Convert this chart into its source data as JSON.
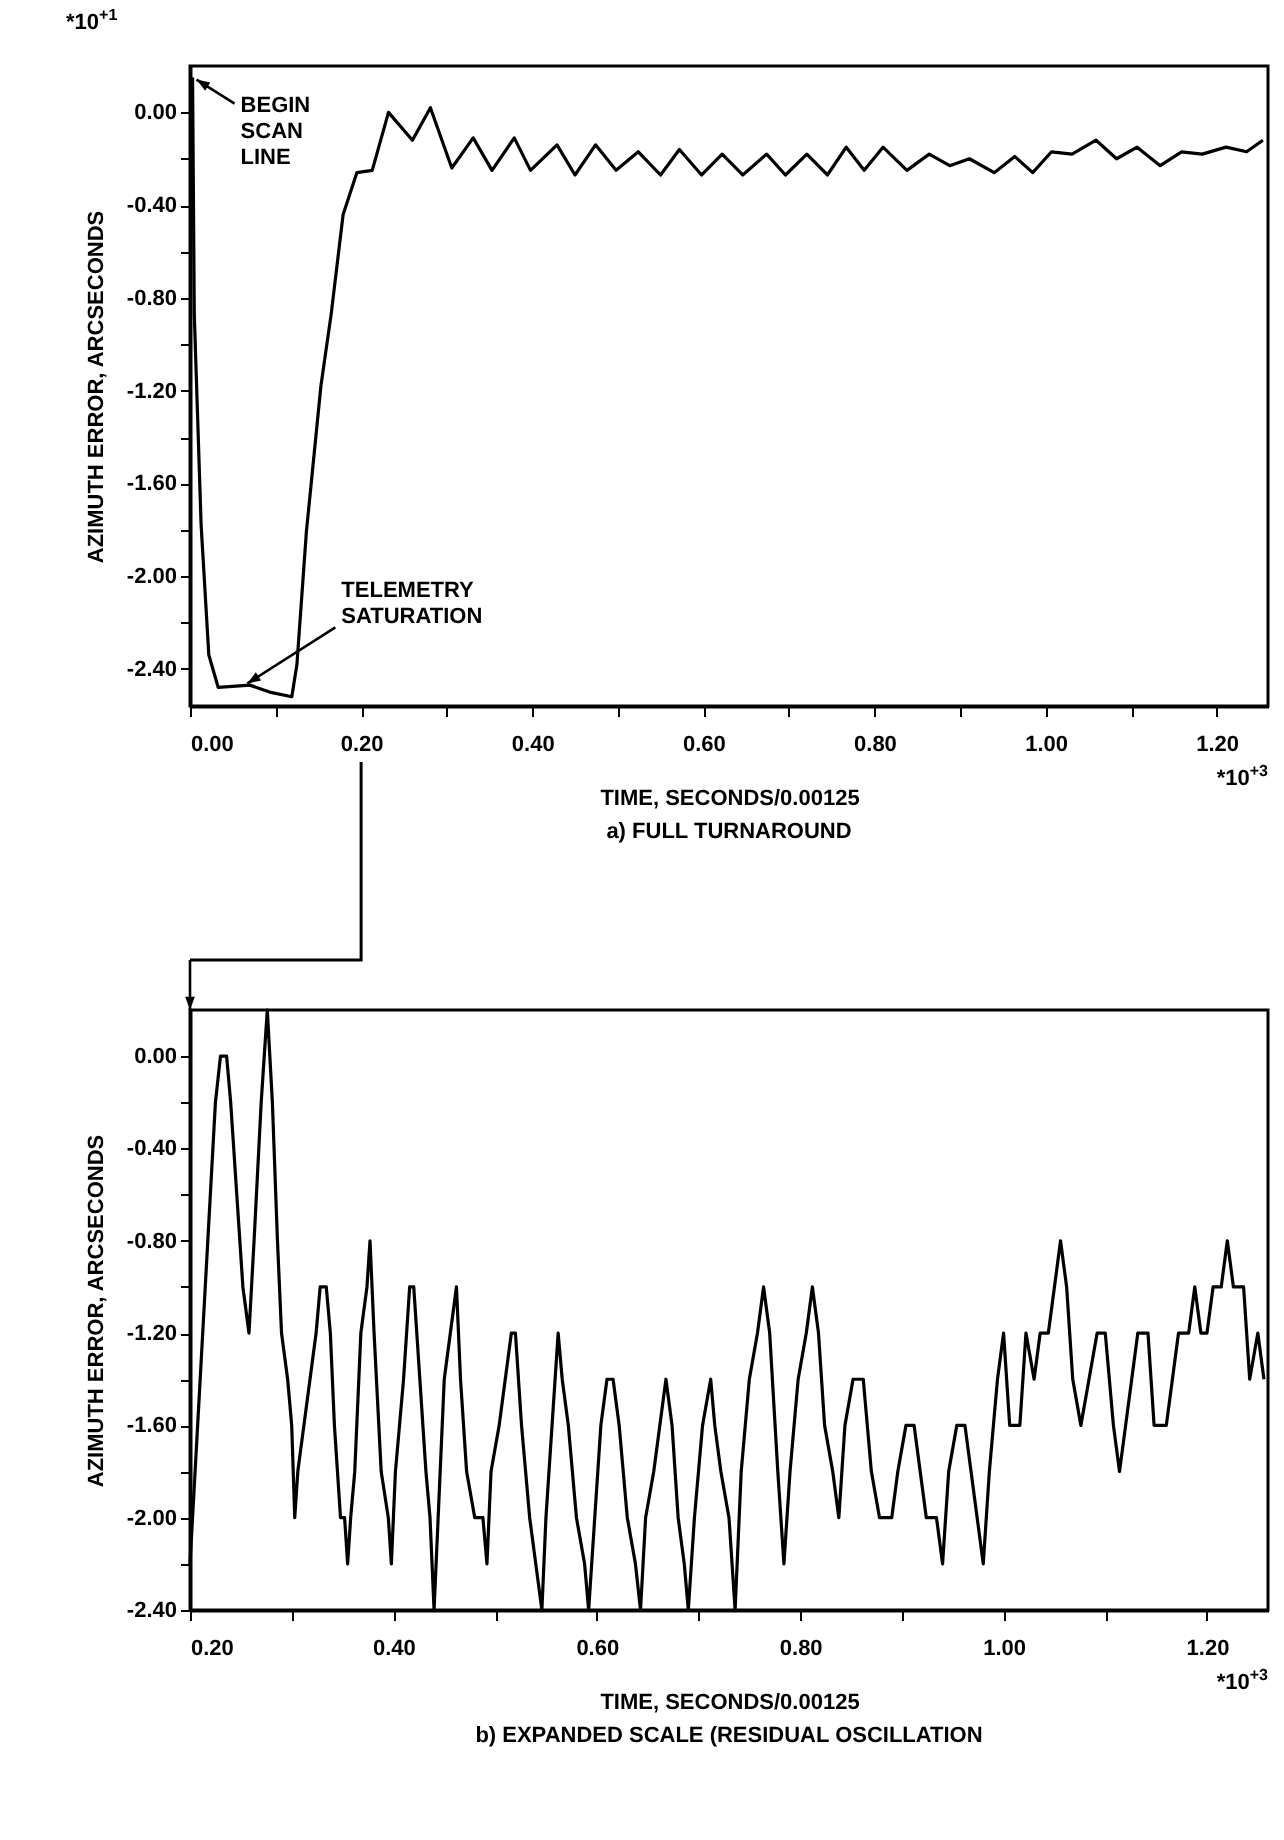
{
  "chart_data": [
    {
      "type": "line",
      "title": "a)  FULL TURNAROUND",
      "xlabel": "TIME, SECONDS/0.00125",
      "ylabel": "AZIMUTH ERROR, ARCSECONDS",
      "annotations": [
        "*10$^{+1}$",
        "*10$^{+3}$",
        {
          "text": "BEGIN SCAN LINE",
          "x": 0.003,
          "y": 0.15
        },
        {
          "text": "TELEMETRY SATURATION",
          "x": 0.06,
          "y": -2.48
        }
      ],
      "x": [
        0.003,
        0.005,
        0.013,
        0.022,
        0.033,
        0.07,
        0.093,
        0.119,
        0.125,
        0.136,
        0.153,
        0.165,
        0.179,
        0.195,
        0.213,
        0.232,
        0.26,
        0.281,
        0.306,
        0.331,
        0.353,
        0.379,
        0.398,
        0.429,
        0.45,
        0.474,
        0.498,
        0.524,
        0.55,
        0.572,
        0.598,
        0.622,
        0.646,
        0.674,
        0.696,
        0.721,
        0.745,
        0.767,
        0.788,
        0.81,
        0.838,
        0.864,
        0.888,
        0.911,
        0.94,
        0.964,
        0.985,
        1.007,
        1.031,
        1.059,
        1.083,
        1.107,
        1.134,
        1.159,
        1.183,
        1.211,
        1.235,
        1.254
      ],
      "series": [
        {
          "color": "#000000",
          "values": [
            0.15,
            -0.87,
            -1.78,
            -2.34,
            -2.48,
            -2.47,
            -2.5,
            -2.52,
            -2.38,
            -1.81,
            -1.18,
            -0.87,
            -0.44,
            -0.26,
            -0.25,
            0.0,
            -0.12,
            0.02,
            -0.24,
            -0.11,
            -0.25,
            -0.11,
            -0.25,
            -0.14,
            -0.27,
            -0.14,
            -0.25,
            -0.17,
            -0.27,
            -0.16,
            -0.27,
            -0.18,
            -0.27,
            -0.18,
            -0.27,
            -0.18,
            -0.27,
            -0.15,
            -0.25,
            -0.15,
            -0.25,
            -0.18,
            -0.23,
            -0.2,
            -0.26,
            -0.19,
            -0.26,
            -0.17,
            -0.18,
            -0.12,
            -0.2,
            -0.15,
            -0.23,
            -0.17,
            -0.18,
            -0.15,
            -0.17,
            -0.12
          ]
        }
      ],
      "xlim": [
        0,
        1.26
      ],
      "ylim": [
        -2.56,
        0.2
      ],
      "xticks": [
        {
          "value": 0,
          "label": "0.00"
        },
        {
          "value": 0.1,
          "label": null
        },
        {
          "value": 0.2,
          "label": "0.20"
        },
        {
          "value": 0.3,
          "label": null
        },
        {
          "value": 0.4,
          "label": "0.40"
        },
        {
          "value": 0.5,
          "label": null
        },
        {
          "value": 0.6,
          "label": "0.60"
        },
        {
          "value": 0.7,
          "label": null
        },
        {
          "value": 0.8,
          "label": "0.80"
        },
        {
          "value": 0.9,
          "label": null
        },
        {
          "value": 1.0,
          "label": "1.00"
        },
        {
          "value": 1.1,
          "label": null
        },
        {
          "value": 1.2,
          "label": "1.20"
        }
      ],
      "yticks": [
        {
          "value": 0,
          "label": "0.00"
        },
        {
          "value": -0.2,
          "label": null
        },
        {
          "value": -0.4,
          "label": "-0.40"
        },
        {
          "value": -0.6,
          "label": null
        },
        {
          "value": -0.8,
          "label": "-0.80"
        },
        {
          "value": -1.0,
          "label": null
        },
        {
          "value": -1.2,
          "label": "-1.20"
        },
        {
          "value": -1.4,
          "label": null
        },
        {
          "value": -1.6,
          "label": "-1.60"
        },
        {
          "value": -1.8,
          "label": null
        },
        {
          "value": -2.0,
          "label": "-2.00"
        },
        {
          "value": -2.2,
          "label": null
        },
        {
          "value": -2.4,
          "label": "-2.40"
        }
      ]
    },
    {
      "type": "line",
      "title": "b)  EXPANDED SCALE (RESIDUAL OSCILLATION",
      "xlabel": "TIME, SECONDS/0.00125",
      "ylabel": "AZIMUTH ERROR, ARCSECONDS",
      "annotations": [
        "*10$^{+3}$"
      ],
      "x": [
        0.2,
        0.205,
        0.215,
        0.225,
        0.23,
        0.236,
        0.24,
        0.246,
        0.252,
        0.258,
        0.263,
        0.27,
        0.276,
        0.281,
        0.286,
        0.29,
        0.296,
        0.3,
        0.303,
        0.306,
        0.312,
        0.318,
        0.324,
        0.328,
        0.334,
        0.338,
        0.342,
        0.348,
        0.352,
        0.355,
        0.358,
        0.362,
        0.368,
        0.374,
        0.377,
        0.381,
        0.388,
        0.395,
        0.398,
        0.402,
        0.41,
        0.416,
        0.42,
        0.426,
        0.432,
        0.436,
        0.44,
        0.444,
        0.45,
        0.456,
        0.462,
        0.466,
        0.472,
        0.48,
        0.488,
        0.492,
        0.496,
        0.504,
        0.51,
        0.516,
        0.52,
        0.526,
        0.534,
        0.54,
        0.546,
        0.55,
        0.556,
        0.562,
        0.566,
        0.572,
        0.58,
        0.588,
        0.592,
        0.598,
        0.604,
        0.61,
        0.616,
        0.622,
        0.63,
        0.638,
        0.643,
        0.648,
        0.656,
        0.662,
        0.668,
        0.674,
        0.68,
        0.686,
        0.69,
        0.696,
        0.704,
        0.712,
        0.716,
        0.722,
        0.73,
        0.736,
        0.742,
        0.75,
        0.758,
        0.764,
        0.77,
        0.778,
        0.784,
        0.79,
        0.798,
        0.806,
        0.812,
        0.818,
        0.824,
        0.832,
        0.838,
        0.844,
        0.852,
        0.862,
        0.87,
        0.878,
        0.89,
        0.896,
        0.904,
        0.912,
        0.918,
        0.924,
        0.934,
        0.94,
        0.946,
        0.954,
        0.962,
        0.968,
        0.974,
        0.98,
        0.986,
        0.994,
        1.0,
        1.006,
        1.016,
        1.022,
        1.03,
        1.036,
        1.044,
        1.05,
        1.056,
        1.062,
        1.068,
        1.076,
        1.084,
        1.092,
        1.1,
        1.108,
        1.114,
        1.12,
        1.126,
        1.132,
        1.142,
        1.148,
        1.16,
        1.166,
        1.172,
        1.182,
        1.188,
        1.194,
        1.2,
        1.206,
        1.214,
        1.22,
        1.226,
        1.236,
        1.242,
        1.25,
        1.256
      ],
      "series": [
        {
          "color": "#000000",
          "values": [
            -2.2,
            -1.8,
            -1.0,
            -0.2,
            0.0,
            0.0,
            -0.2,
            -0.6,
            -1.0,
            -1.2,
            -0.8,
            -0.2,
            0.2,
            -0.2,
            -0.8,
            -1.2,
            -1.4,
            -1.6,
            -2.0,
            -1.8,
            -1.6,
            -1.4,
            -1.2,
            -1.0,
            -1.0,
            -1.2,
            -1.6,
            -2.0,
            -2.0,
            -2.2,
            -2.0,
            -1.8,
            -1.2,
            -1.0,
            -0.8,
            -1.2,
            -1.8,
            -2.0,
            -2.2,
            -1.8,
            -1.4,
            -1.0,
            -1.0,
            -1.4,
            -1.8,
            -2.0,
            -2.4,
            -2.0,
            -1.4,
            -1.2,
            -1.0,
            -1.4,
            -1.8,
            -2.0,
            -2.0,
            -2.2,
            -1.8,
            -1.6,
            -1.4,
            -1.2,
            -1.2,
            -1.6,
            -2.0,
            -2.2,
            -2.4,
            -2.0,
            -1.6,
            -1.2,
            -1.4,
            -1.6,
            -2.0,
            -2.2,
            -2.4,
            -2.0,
            -1.6,
            -1.4,
            -1.4,
            -1.6,
            -2.0,
            -2.2,
            -2.4,
            -2.0,
            -1.8,
            -1.6,
            -1.4,
            -1.6,
            -2.0,
            -2.2,
            -2.4,
            -2.0,
            -1.6,
            -1.4,
            -1.6,
            -1.8,
            -2.0,
            -2.4,
            -1.8,
            -1.4,
            -1.2,
            -1.0,
            -1.2,
            -1.8,
            -2.2,
            -1.8,
            -1.4,
            -1.2,
            -1.0,
            -1.2,
            -1.6,
            -1.8,
            -2.0,
            -1.6,
            -1.4,
            -1.4,
            -1.8,
            -2.0,
            -2.0,
            -1.8,
            -1.6,
            -1.6,
            -1.8,
            -2.0,
            -2.0,
            -2.2,
            -1.8,
            -1.6,
            -1.6,
            -1.8,
            -2.0,
            -2.2,
            -1.8,
            -1.4,
            -1.2,
            -1.6,
            -1.6,
            -1.2,
            -1.4,
            -1.2,
            -1.2,
            -1.0,
            -0.8,
            -1.0,
            -1.4,
            -1.6,
            -1.4,
            -1.2,
            -1.2,
            -1.6,
            -1.8,
            -1.6,
            -1.4,
            -1.2,
            -1.2,
            -1.6,
            -1.6,
            -1.4,
            -1.2,
            -1.2,
            -1.0,
            -1.2,
            -1.2,
            -1.0,
            -1.0,
            -0.8,
            -1.0,
            -1.0,
            -1.4,
            -1.2,
            -1.4
          ]
        }
      ],
      "xlim": [
        0.2,
        1.26
      ],
      "ylim": [
        -2.4,
        0.2
      ],
      "xticks": [
        {
          "value": 0.2,
          "label": "0.20"
        },
        {
          "value": 0.3,
          "label": null
        },
        {
          "value": 0.4,
          "label": "0.40"
        },
        {
          "value": 0.5,
          "label": null
        },
        {
          "value": 0.6,
          "label": "0.60"
        },
        {
          "value": 0.7,
          "label": null
        },
        {
          "value": 0.8,
          "label": "0.80"
        },
        {
          "value": 0.9,
          "label": null
        },
        {
          "value": 1.0,
          "label": "1.00"
        },
        {
          "value": 1.1,
          "label": null
        },
        {
          "value": 1.2,
          "label": "1.20"
        }
      ],
      "yticks": [
        {
          "value": 0,
          "label": "0.00"
        },
        {
          "value": -0.2,
          "label": null
        },
        {
          "value": -0.4,
          "label": "-0.40"
        },
        {
          "value": -0.6,
          "label": null
        },
        {
          "value": -0.8,
          "label": "-0.80"
        },
        {
          "value": -1.0,
          "label": null
        },
        {
          "value": -1.2,
          "label": "-1.20"
        },
        {
          "value": -1.4,
          "label": null
        },
        {
          "value": -1.6,
          "label": "-1.60"
        },
        {
          "value": -1.8,
          "label": null
        },
        {
          "value": -2.0,
          "label": "-2.00"
        },
        {
          "value": -2.2,
          "label": null
        },
        {
          "value": -2.4,
          "label": "-2.40"
        }
      ]
    }
  ]
}
